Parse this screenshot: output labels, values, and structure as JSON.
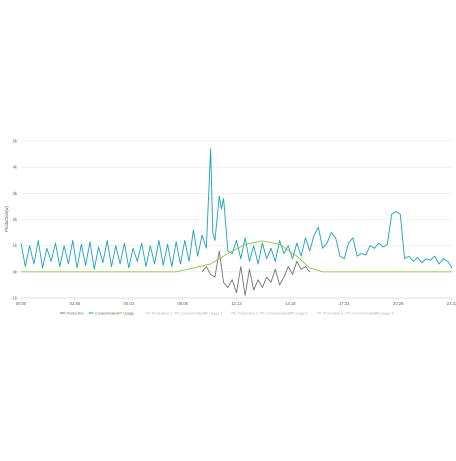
{
  "chart_data": {
    "type": "line",
    "ylabel": "Production(w)",
    "ylim": [
      -1000,
      5000
    ],
    "yticks": [
      {
        "value": 5000,
        "label": "5k"
      },
      {
        "value": 4000,
        "label": "4k"
      },
      {
        "value": 3000,
        "label": "3k"
      },
      {
        "value": 2000,
        "label": "2k"
      },
      {
        "value": 1000,
        "label": "1k"
      },
      {
        "value": 0,
        "label": "0k"
      },
      {
        "value": -1000,
        "label": "-1k"
      }
    ],
    "xlim": [
      0,
      100
    ],
    "xticks": [
      {
        "value": 0,
        "label": "00:00"
      },
      {
        "value": 12.5,
        "label": "02:56"
      },
      {
        "value": 25,
        "label": "05:03"
      },
      {
        "value": 37.5,
        "label": "08:08"
      },
      {
        "value": 50,
        "label": "11:13"
      },
      {
        "value": 62.5,
        "label": "14:18"
      },
      {
        "value": 75,
        "label": "17:23"
      },
      {
        "value": 87.5,
        "label": "20:28"
      },
      {
        "value": 100,
        "label": "23:33"
      }
    ],
    "grid": true,
    "legend_position": "bottom",
    "legend": [
      {
        "label": "Production",
        "color": "#757575",
        "dim": false
      },
      {
        "label": "Consommation",
        "color": "#1aa3bd",
        "dim": false
      },
      {
        "label": "Usage",
        "color": "#8bc34a",
        "dim": false
      },
      {
        "label": "Production-1",
        "color": "#c9c9c9",
        "dim": true
      },
      {
        "label": "Consommation-1",
        "color": "#c9c9c9",
        "dim": true
      },
      {
        "label": "Usage-1",
        "color": "#c9c9c9",
        "dim": true
      },
      {
        "label": "Production-2",
        "color": "#c9c9c9",
        "dim": true
      },
      {
        "label": "Consommation-2",
        "color": "#c9c9c9",
        "dim": true
      },
      {
        "label": "Usage-2",
        "color": "#c9c9c9",
        "dim": true
      },
      {
        "label": "Production-3",
        "color": "#c9c9c9",
        "dim": true
      },
      {
        "label": "Consommation-3",
        "color": "#c9c9c9",
        "dim": true
      },
      {
        "label": "Usage-3",
        "color": "#c9c9c9",
        "dim": true
      }
    ],
    "series": [
      {
        "name": "Consommation",
        "color": "#1aa3bd",
        "x": [
          0,
          1,
          2,
          3,
          4,
          5,
          6,
          7,
          8,
          9,
          10,
          11,
          12,
          13,
          14,
          15,
          16,
          17,
          18,
          19,
          20,
          21,
          22,
          23,
          24,
          25,
          26,
          27,
          28,
          29,
          30,
          31,
          32,
          33,
          34,
          35,
          36,
          37,
          38,
          39,
          40,
          41,
          42,
          43,
          44,
          44.5,
          45,
          46,
          46.5,
          47,
          48,
          49,
          50,
          51,
          52,
          53,
          54,
          55,
          56,
          57,
          58,
          59,
          60,
          61,
          62,
          63,
          64,
          65,
          66,
          67,
          68,
          69,
          70,
          71,
          72,
          73,
          74,
          75,
          76,
          77,
          78,
          79,
          80,
          81,
          82,
          83,
          84,
          85,
          86,
          87,
          88,
          89,
          90,
          91,
          92,
          93,
          94,
          95,
          96,
          97,
          98,
          99,
          100
        ],
        "y": [
          1100,
          200,
          1000,
          300,
          1200,
          150,
          900,
          400,
          1100,
          200,
          1000,
          300,
          1200,
          150,
          1050,
          250,
          1150,
          100,
          950,
          350,
          1200,
          200,
          1000,
          300,
          1100,
          150,
          900,
          400,
          1100,
          200,
          1000,
          300,
          1200,
          250,
          1050,
          200,
          1150,
          300,
          1200,
          400,
          1600,
          600,
          1400,
          900,
          4700,
          1500,
          1200,
          2900,
          2400,
          2800,
          800,
          700,
          1200,
          500,
          1300,
          400,
          1000,
          300,
          1100,
          500,
          900,
          400,
          1200,
          700,
          1000,
          500,
          1100,
          600,
          1300,
          800,
          1400,
          1700,
          900,
          1100,
          1500,
          1300,
          600,
          500,
          1100,
          1300,
          600,
          700,
          650,
          1000,
          900,
          1100,
          950,
          1050,
          2200,
          2300,
          2200,
          500,
          600,
          400,
          550,
          350,
          500,
          450,
          600,
          300,
          500,
          400,
          150
        ]
      },
      {
        "name": "Production",
        "color": "#757575",
        "x": [
          42,
          43,
          44,
          45,
          46,
          47,
          48,
          49,
          50,
          51,
          52,
          53,
          54,
          55,
          56,
          57,
          58,
          59,
          60,
          61,
          62,
          63,
          64,
          65,
          66,
          67
        ],
        "y": [
          0,
          200,
          -100,
          -200,
          800,
          -400,
          -600,
          -300,
          -800,
          200,
          -900,
          100,
          -700,
          -300,
          -600,
          -200,
          -400,
          100,
          -500,
          -200,
          200,
          -100,
          400,
          100,
          200,
          0
        ]
      },
      {
        "name": "Usage",
        "color": "#8bc34a",
        "x": [
          0,
          36,
          40,
          44,
          48,
          52,
          56,
          60,
          64,
          67,
          70,
          74,
          100
        ],
        "y": [
          0,
          0,
          150,
          300,
          700,
          1050,
          1180,
          1050,
          600,
          150,
          0,
          0,
          0
        ]
      }
    ]
  }
}
